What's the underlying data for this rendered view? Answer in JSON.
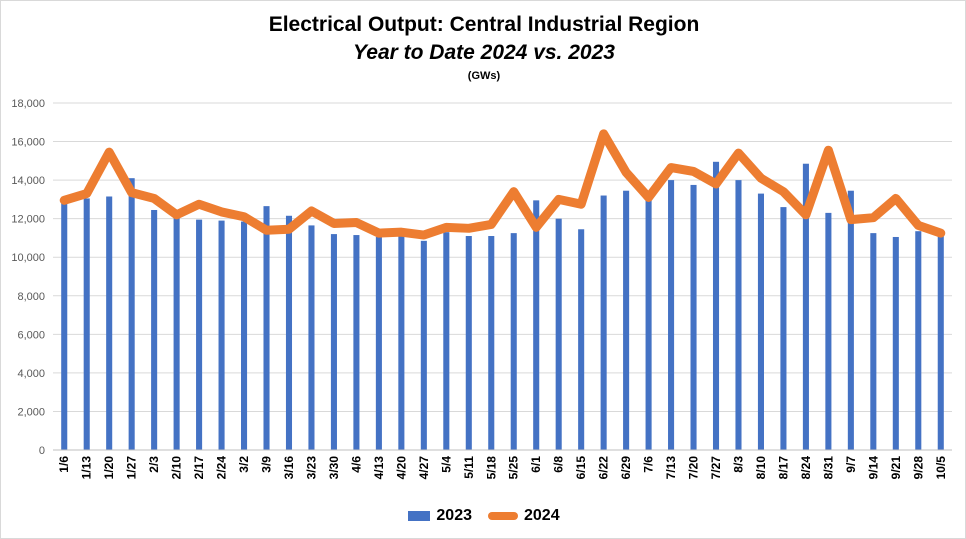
{
  "header": {
    "title": "Electrical Output:  Central Industrial Region",
    "subtitle": "Year to Date 2024 vs. 2023",
    "units": "(GWs)"
  },
  "colors": {
    "series_2023": "#4472C4",
    "series_2024": "#ED7D31",
    "grid": "#d9d9d9",
    "axis_text": "#595959"
  },
  "legend": {
    "placement": "bottom",
    "items": [
      "2023",
      "2024"
    ]
  },
  "chart_data": {
    "type": "bar+line",
    "title": "Electrical Output:  Central Industrial Region",
    "subtitle": "Year to Date 2024 vs. 2023",
    "ylabel": "",
    "xlabel": "",
    "ylim": [
      0,
      18000
    ],
    "yticks": [
      0,
      2000,
      4000,
      6000,
      8000,
      10000,
      12000,
      14000,
      16000,
      18000
    ],
    "ytick_labels": [
      "0",
      "2,000",
      "4,000",
      "6,000",
      "8,000",
      "10,000",
      "12,000",
      "14,000",
      "16,000",
      "18,000"
    ],
    "grid": true,
    "categories": [
      "1/6",
      "1/13",
      "1/20",
      "1/27",
      "2/3",
      "2/10",
      "2/17",
      "2/24",
      "3/2",
      "3/9",
      "3/16",
      "3/23",
      "3/30",
      "4/6",
      "4/13",
      "4/20",
      "4/27",
      "5/4",
      "5/11",
      "5/18",
      "5/25",
      "6/1",
      "6/8",
      "6/15",
      "6/22",
      "6/29",
      "7/6",
      "7/13",
      "7/20",
      "7/27",
      "8/3",
      "8/10",
      "8/17",
      "8/24",
      "8/31",
      "9/7",
      "9/14",
      "9/21",
      "9/28",
      "10/5"
    ],
    "series": [
      {
        "name": "2023",
        "type": "bar",
        "values": [
          12850,
          13050,
          13150,
          14100,
          12450,
          12100,
          11950,
          11900,
          11850,
          12650,
          12150,
          11650,
          11200,
          11150,
          11050,
          11100,
          10850,
          11300,
          11100,
          11100,
          11250,
          12950,
          12000,
          11450,
          13200,
          13450,
          13000,
          14000,
          13750,
          14950,
          14000,
          13300,
          12600,
          14850,
          12300,
          13450,
          11250,
          11050,
          11350,
          11400
        ]
      },
      {
        "name": "2024",
        "type": "line",
        "values": [
          12950,
          13300,
          15450,
          13350,
          13050,
          12200,
          12750,
          12350,
          12100,
          11400,
          11450,
          12400,
          11750,
          11800,
          11250,
          11300,
          11150,
          11550,
          11500,
          11700,
          13400,
          11550,
          13000,
          12750,
          16400,
          14400,
          13100,
          14650,
          14450,
          13800,
          15400,
          14100,
          13400,
          12200,
          15550,
          11950,
          12050,
          13050,
          11650,
          11250
        ]
      }
    ]
  }
}
